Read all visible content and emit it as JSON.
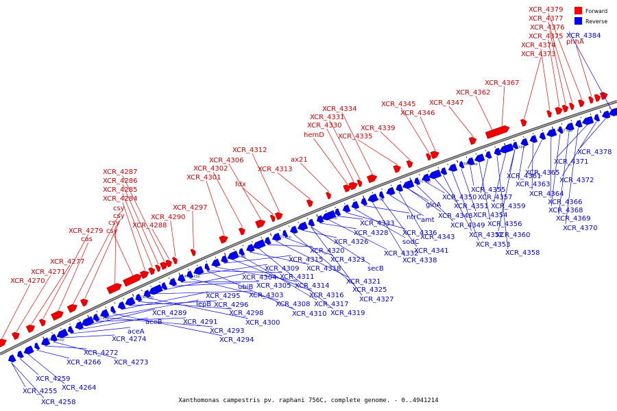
{
  "caption": "Xanthomonas campestris pv. raphani 756C, complete genome. - 0..4941214",
  "legend": [
    {
      "label": "Forward",
      "color": "#ff0000"
    },
    {
      "label": "Reverse",
      "color": "#0000ff"
    }
  ],
  "ticks": [
    "4570 kbp",
    "4580 kbp",
    "4590 kbp",
    "4600 kbp",
    "4610 kbp",
    "4620 kbp",
    "4630 kbp",
    "4640 kbp",
    "4650 kbp",
    "4660 kbp",
    "4670 kbp",
    "4680 kbp",
    "4690 kbp"
  ],
  "forward_labels": [
    "XCR_4270",
    "XCR_4271",
    "XCR_4277",
    "XCR_4279",
    "cas",
    "csy",
    "csy",
    "csy",
    "csy",
    "XCR_4284",
    "XCR_4285",
    "XCR_4286",
    "XCR_4287",
    "XCR_4288",
    "XCR_4290",
    "XCR_4297",
    "XCR_4301",
    "XCR_4302",
    "XCR_4306",
    "fdx",
    "XCR_4312",
    "XCR_4313",
    "ax21",
    "hemD",
    "XCR_4330",
    "XCR_4331",
    "XCR_4334",
    "XCR_4335",
    "XCR_4339",
    "XCR_4345",
    "XCR_4346",
    "XCR_4347",
    "XCR_4362",
    "XCR_4367",
    "XCR_4373",
    "XCR_4374",
    "XCR_4375",
    "XCR_4376",
    "XCR_4377",
    "XCR_4379",
    "phhA"
  ],
  "reverse_labels": [
    "XCR_4255",
    "XCR_4258",
    "XCR_4259",
    "XCR_4264",
    "XCR_4266",
    "XCR_4272",
    "XCR_4273",
    "XCR_4274",
    "aceA",
    "aceB",
    "XCR_4289",
    "XCR_4291",
    "lepB",
    "XCR_4293",
    "XCR_4294",
    "XCR_4295",
    "XCR_4296",
    "XCR_4298",
    "XCR_4300",
    "XCR_4303",
    "XCR_4304",
    "ubiB",
    "XCR_4305",
    "XCR_4308",
    "XCR_4309",
    "XCR_4310",
    "XCR_4311",
    "XCR_4314",
    "XCR_4315",
    "XCR_4316",
    "XCR_4317",
    "XCR_4318",
    "XCR_4319",
    "XCR_4320",
    "XCR_4321",
    "XCR_4323",
    "XCR_4325",
    "XCR_4326",
    "XCR_4327",
    "secB",
    "XCR_4328",
    "XCR_4332",
    "XCR_4333",
    "XCR_4336",
    "sodC",
    "ntrC",
    "XCR_4338",
    "XCR_4341",
    "amt",
    "XCR_4343",
    "glnA",
    "XCR_4348",
    "XCR_4349",
    "XCR_4350",
    "XCR_4351",
    "XCR_4352",
    "XCR_4353",
    "XCR_4354",
    "XCR_4355",
    "XCR_4356",
    "XCR_4357",
    "XCR_4358",
    "XCR_4359",
    "XCR_4360",
    "XCR_4361",
    "XCR_4363",
    "XCR_4364",
    "XCR_4365",
    "XCR_4366",
    "XCR_4368",
    "XCR_4369",
    "XCR_4370",
    "XCR_4371",
    "XCR_4372",
    "XCR_4378",
    "XCR_4384"
  ]
}
